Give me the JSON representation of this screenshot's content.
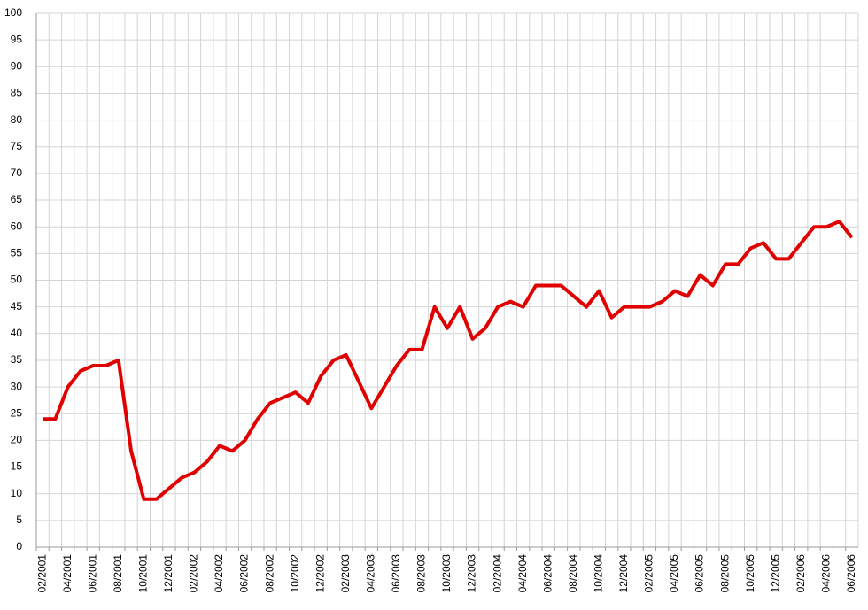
{
  "chart_data": {
    "type": "line",
    "categories": [
      "02/2001",
      null,
      "04/2001",
      null,
      "06/2001",
      null,
      "08/2001",
      null,
      "10/2001",
      null,
      "12/2001",
      null,
      "02/2002",
      null,
      "04/2002",
      null,
      "06/2002",
      null,
      "08/2002",
      null,
      "10/2002",
      null,
      "12/2002",
      null,
      "02/2003",
      null,
      "04/2003",
      null,
      "06/2003",
      null,
      "08/2003",
      null,
      "10/2003",
      null,
      "12/2003",
      null,
      "02/2004",
      null,
      "04/2004",
      null,
      "06/2004",
      null,
      "08/2004",
      null,
      "10/2004",
      null,
      "12/2004",
      null,
      "02/2005",
      null,
      "04/2005",
      null,
      "06/2005",
      null,
      "08/2005",
      null,
      "10/2005",
      null,
      "12/2005",
      null,
      "02/2006",
      null,
      "04/2006",
      null,
      "06/2006"
    ],
    "series": [
      {
        "color": "#e00000",
        "values": [
          24,
          24,
          30,
          33,
          34,
          34,
          35,
          18,
          9,
          9,
          11,
          13,
          14,
          16,
          19,
          18,
          20,
          24,
          27,
          28,
          29,
          27,
          32,
          35,
          36,
          31,
          26,
          30,
          34,
          37,
          37,
          45,
          41,
          45,
          39,
          41,
          45,
          46,
          45,
          49,
          49,
          49,
          47,
          45,
          48,
          43,
          45,
          45,
          45,
          46,
          48,
          47,
          51,
          49,
          53,
          53,
          56,
          57,
          54,
          54,
          57,
          60,
          60,
          61,
          58
        ]
      }
    ],
    "ylim": [
      0,
      100
    ],
    "yticks": [
      0,
      5,
      10,
      15,
      20,
      25,
      30,
      35,
      40,
      45,
      50,
      55,
      60,
      65,
      70,
      75,
      80,
      85,
      90,
      95,
      100
    ],
    "grid": true
  }
}
